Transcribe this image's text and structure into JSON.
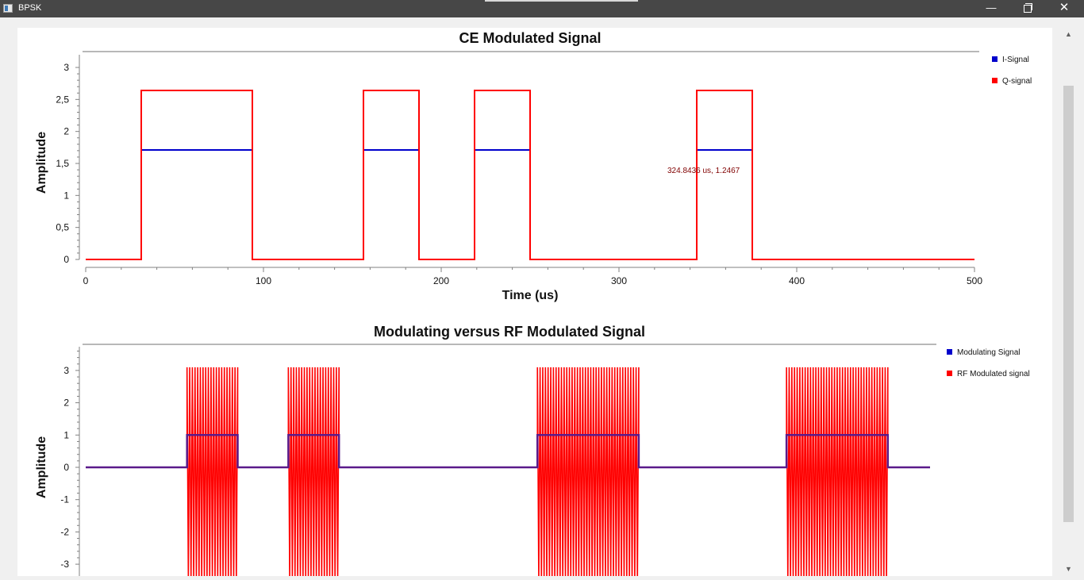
{
  "window": {
    "title": "BPSK",
    "minimize_glyph": "—",
    "close_glyph": "✕"
  },
  "colors": {
    "i_signal": "#0000cc",
    "q_signal": "#ff0000",
    "axis": "#808080",
    "titlebar": "#474747"
  },
  "scrollbar": {
    "up_glyph": "▲",
    "down_glyph": "▼"
  },
  "chart_data": [
    {
      "type": "line",
      "title": "CE Modulated Signal",
      "xlabel": "Time (us)",
      "ylabel": "Amplitude",
      "xlim": [
        0,
        500
      ],
      "ylim": [
        0,
        3
      ],
      "x_ticks": [
        "0",
        "100",
        "200",
        "300",
        "400",
        "500"
      ],
      "y_ticks": [
        "0",
        "0,5",
        "1",
        "1,5",
        "2",
        "2,5",
        "3"
      ],
      "legend_position": "right",
      "annotation": "324.8436 us, 1.2467",
      "series": [
        {
          "name": "I-Signal",
          "color": "#0000cc",
          "x": [
            0,
            31.25,
            31.25,
            93.75,
            93.75,
            156.25,
            156.25,
            187.5,
            187.5,
            218.75,
            218.75,
            250,
            250,
            343.75,
            343.75,
            375,
            375,
            500
          ],
          "y": [
            0,
            0,
            1.71,
            1.71,
            0,
            0,
            1.71,
            1.71,
            0,
            0,
            1.71,
            1.71,
            0,
            0,
            1.71,
            1.71,
            0,
            0
          ]
        },
        {
          "name": "Q-signal",
          "color": "#ff0000",
          "x": [
            0,
            31.25,
            31.25,
            93.75,
            93.75,
            156.25,
            156.25,
            187.5,
            187.5,
            218.75,
            218.75,
            250,
            250,
            343.75,
            343.75,
            375,
            375,
            500
          ],
          "y": [
            0,
            0,
            2.64,
            2.64,
            0,
            0,
            2.64,
            2.64,
            0,
            0,
            2.64,
            2.64,
            0,
            0,
            2.64,
            2.64,
            0,
            0
          ]
        }
      ]
    },
    {
      "type": "line",
      "title": "Modulating versus RF Modulated Signal",
      "xlabel": "",
      "ylabel": "Amplitude",
      "ylim": [
        -3,
        3.5
      ],
      "y_ticks": [
        "-3",
        "-2",
        "-1",
        "0",
        "1",
        "2",
        "3"
      ],
      "legend_position": "right",
      "series": [
        {
          "name": "Modulating Signal",
          "color": "#0000cc",
          "bursts": [
            [
              0.12,
              0.18
            ],
            [
              0.24,
              0.3
            ],
            [
              0.535,
              0.655
            ],
            [
              0.83,
              0.95
            ]
          ],
          "on_value": 1,
          "off_value": 0
        },
        {
          "name": "RF Modulated signal",
          "color": "#ff0000",
          "bursts": [
            [
              0.12,
              0.18
            ],
            [
              0.24,
              0.3
            ],
            [
              0.535,
              0.655
            ],
            [
              0.83,
              0.95
            ]
          ],
          "amplitude": 3.1,
          "off_value": 0
        }
      ]
    }
  ]
}
